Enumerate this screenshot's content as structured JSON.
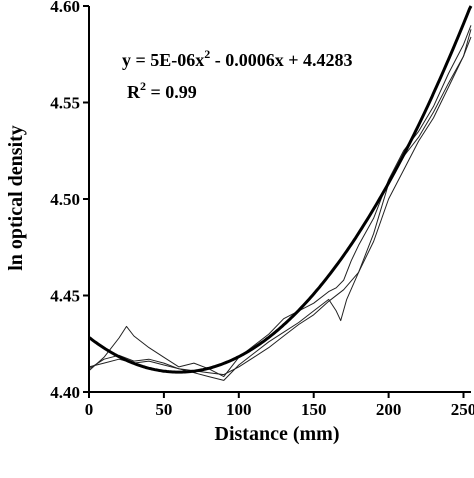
{
  "chart_data": {
    "type": "line",
    "title": "",
    "xlabel": "Distance (mm)",
    "ylabel": "ln optical density",
    "xlim": [
      0,
      255
    ],
    "ylim": [
      4.4,
      4.6
    ],
    "x_ticks": [
      0,
      50,
      100,
      150,
      200,
      250
    ],
    "x_tick_labels": [
      "0",
      "50",
      "100",
      "150",
      "200",
      "250"
    ],
    "y_ticks": [
      4.4,
      4.45,
      4.5,
      4.55,
      4.6
    ],
    "y_tick_labels": [
      "4.40",
      "4.45",
      "4.50",
      "4.55",
      "4.60"
    ],
    "grid": false,
    "legend": "none",
    "fit": {
      "equation_prefix": "y = 5E-06x",
      "equation_sup": "2",
      "equation_suffix": " - 0.0006x + 4.4283",
      "r2_prefix": "R",
      "r2_sup": "2",
      "r2_suffix": " = 0.99",
      "coefficients": {
        "a": 5e-06,
        "b": -0.0006,
        "c": 4.4283
      }
    },
    "series": [
      {
        "x": [
          0,
          10,
          20,
          25,
          30,
          40,
          50,
          60,
          70,
          80,
          90,
          100,
          110,
          120,
          130,
          140,
          150,
          160,
          165,
          170,
          175,
          180,
          190,
          200,
          210,
          220,
          230,
          240,
          250,
          255
        ],
        "values": [
          4.411,
          4.418,
          4.428,
          4.434,
          4.429,
          4.423,
          4.418,
          4.413,
          4.415,
          4.412,
          4.408,
          4.418,
          4.424,
          4.43,
          4.438,
          4.442,
          4.446,
          4.452,
          4.454,
          4.458,
          4.468,
          4.476,
          4.49,
          4.51,
          4.525,
          4.535,
          4.548,
          4.565,
          4.58,
          4.59
        ]
      },
      {
        "x": [
          0,
          10,
          20,
          30,
          40,
          50,
          60,
          70,
          80,
          90,
          100,
          110,
          120,
          130,
          140,
          150,
          160,
          165,
          168,
          172,
          180,
          190,
          200,
          210,
          220,
          230,
          240,
          250,
          255
        ],
        "values": [
          4.412,
          4.417,
          4.419,
          4.416,
          4.417,
          4.415,
          4.412,
          4.41,
          4.408,
          4.406,
          4.414,
          4.42,
          4.426,
          4.431,
          4.436,
          4.442,
          4.448,
          4.442,
          4.437,
          4.448,
          4.462,
          4.482,
          4.508,
          4.522,
          4.532,
          4.545,
          4.56,
          4.574,
          4.588
        ]
      },
      {
        "x": [
          0,
          10,
          20,
          30,
          40,
          50,
          60,
          70,
          80,
          90,
          100,
          110,
          120,
          130,
          140,
          150,
          160,
          170,
          180,
          190,
          200,
          210,
          220,
          230,
          240,
          250,
          255
        ],
        "values": [
          4.413,
          4.415,
          4.417,
          4.415,
          4.416,
          4.414,
          4.412,
          4.411,
          4.41,
          4.409,
          4.413,
          4.418,
          4.423,
          4.429,
          4.435,
          4.44,
          4.447,
          4.453,
          4.462,
          4.478,
          4.5,
          4.515,
          4.53,
          4.542,
          4.558,
          4.574,
          4.584
        ]
      }
    ]
  }
}
